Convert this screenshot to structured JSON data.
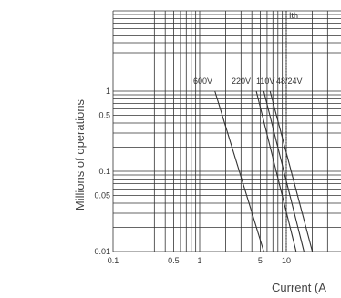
{
  "chart_data": {
    "type": "line",
    "title": "",
    "xlabel": "Current (A",
    "ylabel": "Millions of operations",
    "x_scale": "log",
    "y_scale": "log",
    "xlim": [
      0.1,
      30
    ],
    "ylim": [
      0.01,
      10
    ],
    "grid": true,
    "x_ticks": [
      {
        "value": 0.1,
        "label": "0.1"
      },
      {
        "value": 0.5,
        "label": "0.5"
      },
      {
        "value": 1,
        "label": "1"
      },
      {
        "value": 5,
        "label": "5"
      },
      {
        "value": 10,
        "label": "10"
      }
    ],
    "y_ticks": [
      {
        "value": 0.01,
        "label": "0.01"
      },
      {
        "value": 0.05,
        "label": "0.05"
      },
      {
        "value": 0.1,
        "label": "0.1"
      },
      {
        "value": 0.5,
        "label": "0.5"
      },
      {
        "value": 1,
        "label": "1"
      }
    ],
    "series": [
      {
        "name": "600V",
        "x": [
          1.5,
          5.5
        ],
        "y": [
          1.0,
          0.01
        ]
      },
      {
        "name": "220V",
        "x": [
          4.5,
          13
        ],
        "y": [
          1.0,
          0.01
        ]
      },
      {
        "name": "110V",
        "x": [
          5.5,
          16
        ],
        "y": [
          1.0,
          0.01
        ]
      },
      {
        "name": "48/24V",
        "x": [
          6.5,
          20
        ],
        "y": [
          1.0,
          0.01
        ]
      }
    ],
    "series_labels": [
      "600V",
      "220V",
      "110V",
      "48/24V"
    ],
    "reference_line": {
      "label": "Ith",
      "x": 10,
      "style": "dotted"
    }
  }
}
